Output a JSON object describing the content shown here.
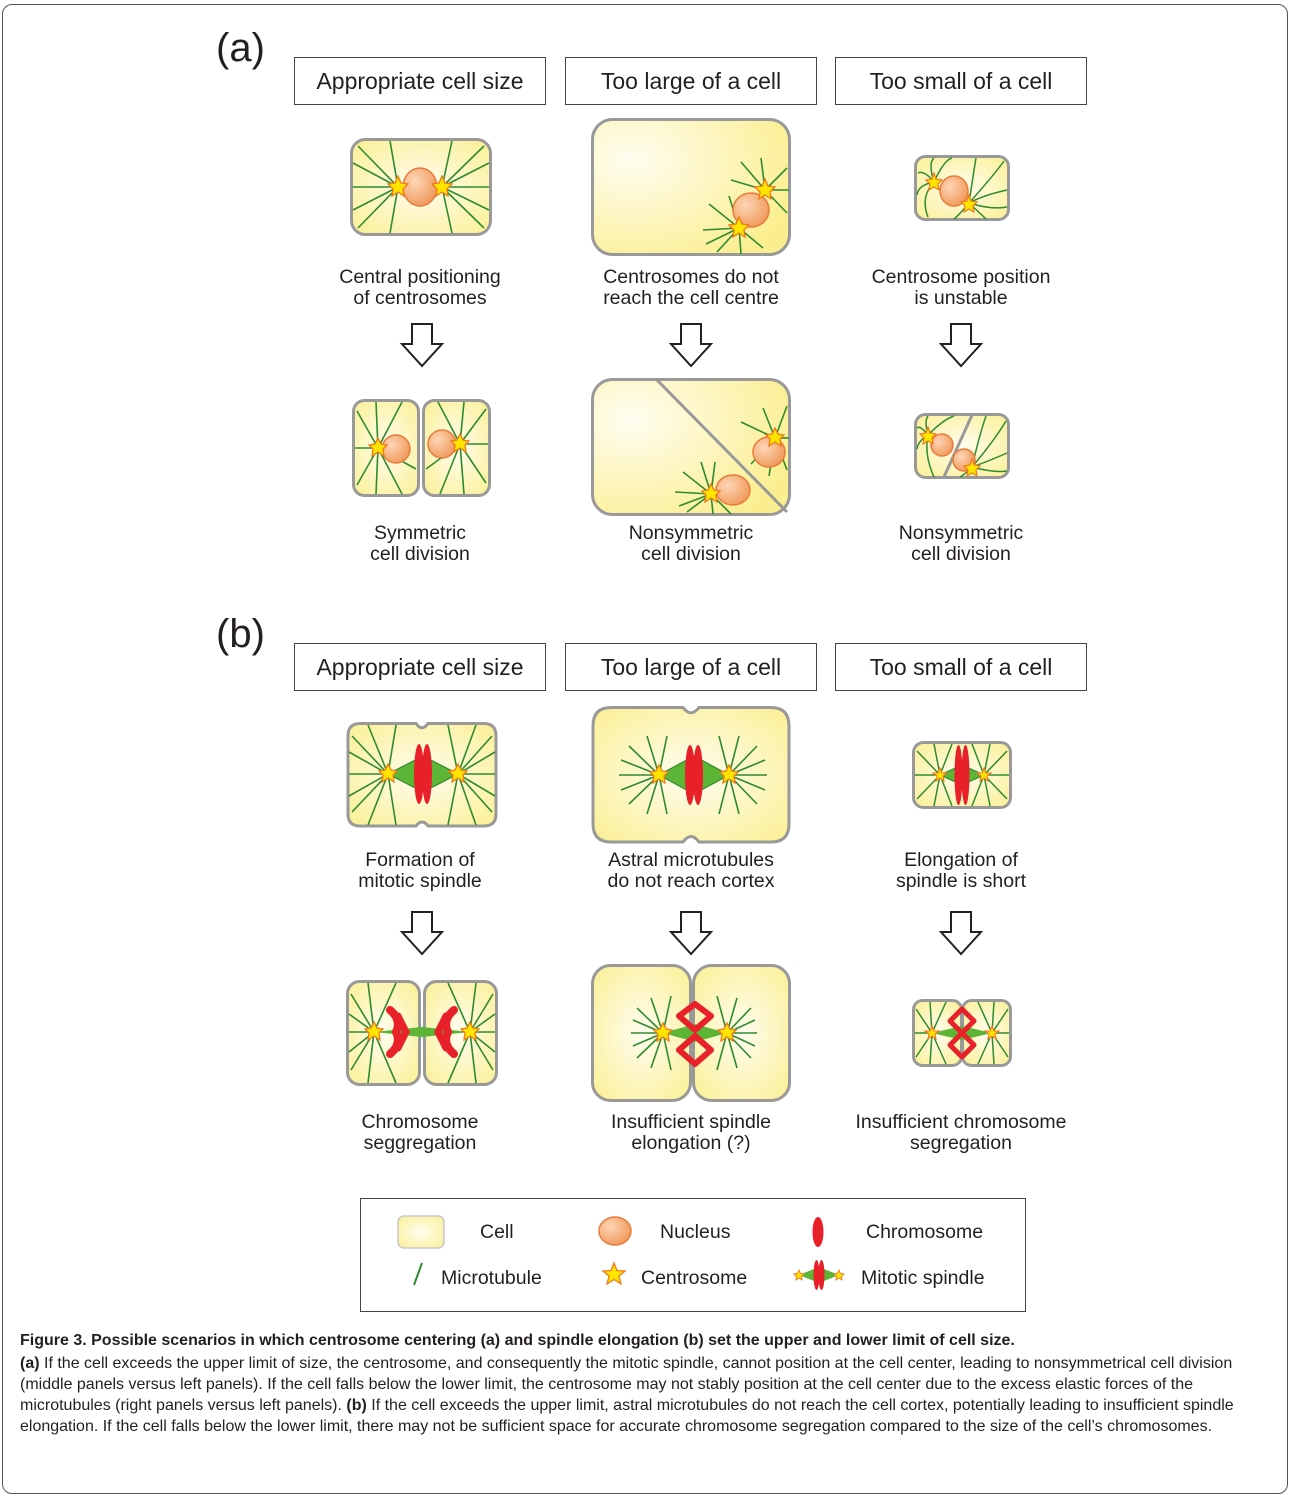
{
  "panels": [
    {
      "label": "(a)",
      "columns": [
        {
          "header": "Appropriate cell size",
          "caption1": [
            "Central positioning",
            "of centrosomes"
          ],
          "caption2": [
            "Symmetric",
            "cell division"
          ]
        },
        {
          "header": "Too large of a cell",
          "caption1": [
            "Centrosomes do not",
            "reach the cell centre"
          ],
          "caption2": [
            "Nonsymmetric",
            "cell division"
          ]
        },
        {
          "header": "Too small of a cell",
          "caption1": [
            "Centrosome position",
            "is unstable"
          ],
          "caption2": [
            "Nonsymmetric",
            "cell division"
          ]
        }
      ]
    },
    {
      "label": "(b)",
      "columns": [
        {
          "header": "Appropriate cell size",
          "caption1": [
            "Formation of",
            "mitotic spindle"
          ],
          "caption2": [
            "Chromosome",
            "seggregation"
          ]
        },
        {
          "header": "Too large of a cell",
          "caption1": [
            "Astral microtubules",
            "do not reach cortex"
          ],
          "caption2": [
            "Insufficient spindle",
            "elongation (?)"
          ]
        },
        {
          "header": "Too small of a cell",
          "caption1": [
            "Elongation of",
            "spindle is short"
          ],
          "caption2": [
            "Insufficient chromosome",
            "segregation"
          ]
        }
      ]
    }
  ],
  "legend": {
    "cell": "Cell",
    "nucleus": "Nucleus",
    "chromosome": "Chromosome",
    "microtubule": "Microtubule",
    "centrosome": "Centrosome",
    "mitotic_spindle": "Mitotic spindle"
  },
  "colors": {
    "cell_fill": "#fdf6b8",
    "cell_border": "#9a9a9a",
    "microtubule": "#2e8b2e",
    "centrosome": "#ffe400",
    "centrosome_edge": "#f0781e",
    "nucleus": "#f5a971",
    "chromosome": "#e8202a",
    "spindle": "#5cb535"
  },
  "caption": {
    "title": "Figure 3. Possible scenarios in which centrosome centering (a) and spindle elongation (b) set the upper and lower limit of cell size.",
    "a_label": "(a)",
    "a_text": "If the cell exceeds the upper limit of size, the centrosome, and consequently the mitotic spindle, cannot position at the cell center, leading to nonsymmetrical cell division (middle panels versus left panels). If the cell falls below the lower limit, the centrosome may not stably position at the cell center due to the excess elastic forces of the microtubules (right panels versus left panels).",
    "b_label": "(b)",
    "b_text": "If the cell exceeds the upper limit, astral microtubules do not reach the cell cortex, potentially leading to insufficient spindle elongation. If the cell falls below the lower limit, there may not be sufficient space for accurate chromosome segregation compared to the size of the cell’s chromosomes."
  }
}
